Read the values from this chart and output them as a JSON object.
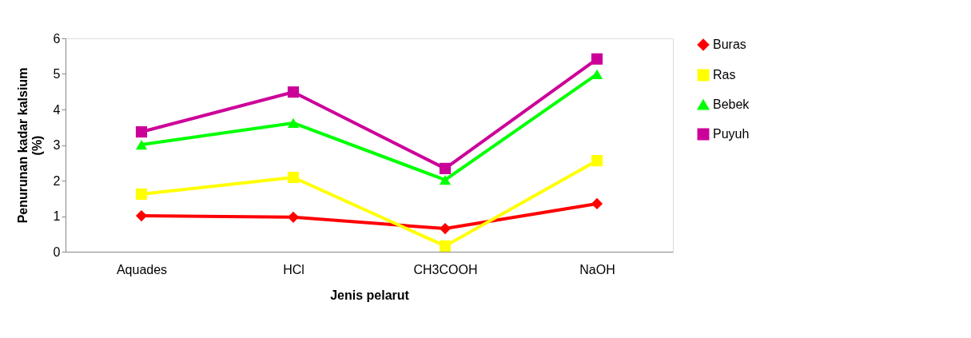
{
  "chart_data": {
    "type": "line",
    "xlabel": "Jenis pelarut",
    "ylabel": "Penurunan kadar kalsium (%)",
    "categories": [
      "Aquades",
      "HCl",
      "CH3COOH",
      "NaOH"
    ],
    "ylim": [
      0,
      6
    ],
    "yticks": [
      0,
      1,
      2,
      3,
      4,
      5,
      6
    ],
    "grid": false,
    "legend": "right",
    "series": [
      {
        "name": "Buras",
        "color": "#ff0000",
        "marker": "diamond",
        "values": [
          1.01,
          0.97,
          0.65,
          1.35
        ]
      },
      {
        "name": "Ras",
        "color": "#ffff00",
        "marker": "square",
        "values": [
          1.62,
          2.09,
          0.16,
          2.56
        ]
      },
      {
        "name": "Bebek",
        "color": "#00ff00",
        "marker": "triangle",
        "values": [
          3.01,
          3.62,
          2.02,
          4.99
        ]
      },
      {
        "name": "Puyuh",
        "color": "#cc0099",
        "marker": "square",
        "values": [
          3.37,
          4.49,
          2.34,
          5.42
        ]
      }
    ]
  }
}
